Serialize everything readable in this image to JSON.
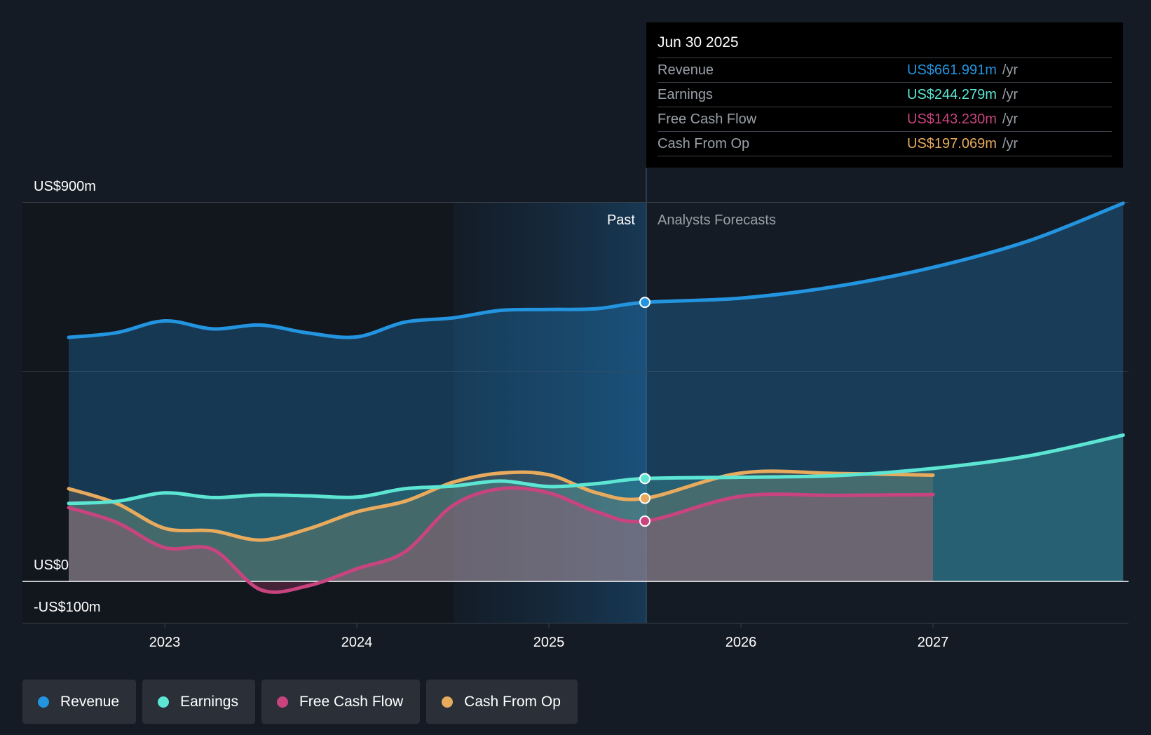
{
  "chart_data": {
    "type": "line",
    "title": "",
    "y_axis": {
      "labels": [
        "US$900m",
        "US$0",
        "-US$100m"
      ],
      "ylim": [
        -100,
        900
      ]
    },
    "x_axis": {
      "ticks": [
        "2023",
        "2024",
        "2025",
        "2026",
        "2027"
      ]
    },
    "regions": {
      "past_label": "Past",
      "forecast_label": "Analysts Forecasts"
    },
    "series": [
      {
        "name": "Revenue",
        "color": "#2394df",
        "points": [
          [
            2022.5,
            579
          ],
          [
            2022.75,
            590
          ],
          [
            2023.0,
            618
          ],
          [
            2023.25,
            599
          ],
          [
            2023.5,
            608
          ],
          [
            2023.75,
            589
          ],
          [
            2024.0,
            580
          ],
          [
            2024.25,
            615
          ],
          [
            2024.5,
            625
          ],
          [
            2024.75,
            643
          ],
          [
            2025.0,
            645
          ],
          [
            2025.25,
            647
          ],
          [
            2025.5,
            662
          ],
          [
            2026.0,
            672
          ],
          [
            2026.5,
            700
          ],
          [
            2027.0,
            745
          ],
          [
            2027.5,
            808
          ],
          [
            2027.99,
            897
          ]
        ]
      },
      {
        "name": "Earnings",
        "color": "#5de5d3",
        "points": [
          [
            2022.5,
            185
          ],
          [
            2022.75,
            190
          ],
          [
            2023.0,
            210
          ],
          [
            2023.25,
            199
          ],
          [
            2023.5,
            205
          ],
          [
            2023.75,
            203
          ],
          [
            2024.0,
            200
          ],
          [
            2024.25,
            220
          ],
          [
            2024.5,
            226
          ],
          [
            2024.75,
            238
          ],
          [
            2025.0,
            225
          ],
          [
            2025.25,
            232
          ],
          [
            2025.5,
            244
          ],
          [
            2026.0,
            247
          ],
          [
            2026.5,
            251
          ],
          [
            2027.0,
            268
          ],
          [
            2027.5,
            298
          ],
          [
            2027.99,
            347
          ]
        ]
      },
      {
        "name": "Free Cash Flow",
        "color": "#c8447f",
        "points": [
          [
            2022.5,
            175
          ],
          [
            2022.75,
            140
          ],
          [
            2023.0,
            80
          ],
          [
            2023.25,
            76
          ],
          [
            2023.5,
            -20
          ],
          [
            2023.75,
            -10
          ],
          [
            2024.0,
            30
          ],
          [
            2024.25,
            70
          ],
          [
            2024.5,
            180
          ],
          [
            2024.75,
            220
          ],
          [
            2025.0,
            210
          ],
          [
            2025.25,
            165
          ],
          [
            2025.5,
            143
          ],
          [
            2026.0,
            202
          ],
          [
            2026.5,
            204
          ],
          [
            2027.0,
            206
          ]
        ]
      },
      {
        "name": "Cash From Op",
        "color": "#e8ab5e",
        "points": [
          [
            2022.5,
            220
          ],
          [
            2022.75,
            185
          ],
          [
            2023.0,
            126
          ],
          [
            2023.25,
            120
          ],
          [
            2023.5,
            98
          ],
          [
            2023.75,
            125
          ],
          [
            2024.0,
            165
          ],
          [
            2024.25,
            190
          ],
          [
            2024.5,
            235
          ],
          [
            2024.75,
            257
          ],
          [
            2025.0,
            253
          ],
          [
            2025.25,
            210
          ],
          [
            2025.5,
            197
          ],
          [
            2026.0,
            257
          ],
          [
            2026.5,
            256
          ],
          [
            2027.0,
            252
          ]
        ]
      }
    ]
  },
  "tooltip": {
    "date": "Jun 30 2025",
    "rows": [
      {
        "label": "Revenue",
        "value": "US$661.991m",
        "unit": "/yr",
        "color": "#2394df"
      },
      {
        "label": "Earnings",
        "value": "US$244.279m",
        "unit": "/yr",
        "color": "#5de5d3"
      },
      {
        "label": "Free Cash Flow",
        "value": "US$143.230m",
        "unit": "/yr",
        "color": "#c8447f"
      },
      {
        "label": "Cash From Op",
        "value": "US$197.069m",
        "unit": "/yr",
        "color": "#e8ab5e"
      }
    ]
  },
  "legend": [
    {
      "label": "Revenue",
      "color": "#2394df"
    },
    {
      "label": "Earnings",
      "color": "#5de5d3"
    },
    {
      "label": "Free Cash Flow",
      "color": "#c8447f"
    },
    {
      "label": "Cash From Op",
      "color": "#e8ab5e"
    }
  ]
}
